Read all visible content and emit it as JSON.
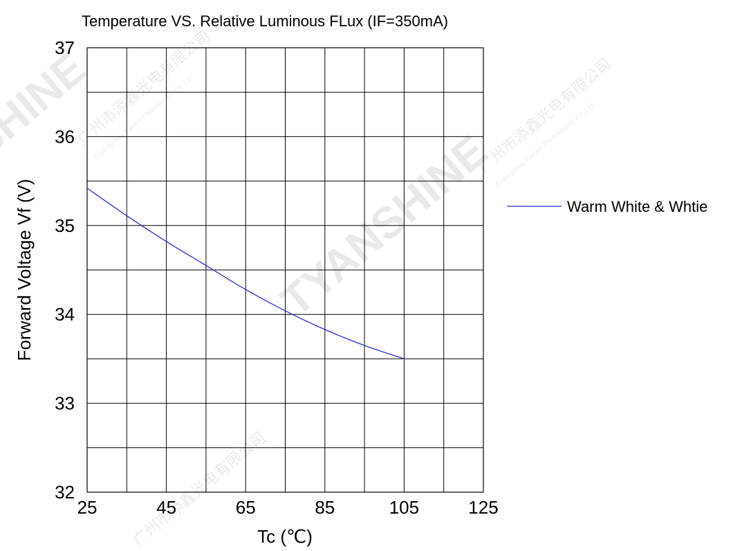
{
  "watermark": {
    "brand": "TYANSHINE",
    "company_cn": "广州市添鑫光电有限公司",
    "company_en": "Guangzhou Tianxin Photoelectric Co.,Ltd"
  },
  "chart_data": {
    "type": "line",
    "title": "Temperature VS. Relative Luminous FLux (IF=350mA)",
    "xlabel": "Tc (℃)",
    "ylabel": "Forward Voltage Vf (V)",
    "xlim": [
      25,
      125
    ],
    "ylim": [
      32,
      37
    ],
    "x_ticks": [
      "25",
      "45",
      "65",
      "85",
      "105",
      "125"
    ],
    "y_ticks": [
      "32",
      "33",
      "34",
      "35",
      "36",
      "37"
    ],
    "x_tick_values": [
      25,
      45,
      65,
      85,
      105,
      125
    ],
    "y_tick_values": [
      32,
      33,
      34,
      35,
      36,
      37
    ],
    "x_grid_step": 10,
    "y_grid_step": 0.5,
    "grid": true,
    "legend_position": "right",
    "series": [
      {
        "name": "Warm White & Whtie",
        "color": "#2a2ae0",
        "x": [
          25,
          35,
          45,
          55,
          65,
          75,
          85,
          95,
          105
        ],
        "y": [
          35.42,
          35.11,
          34.82,
          34.55,
          34.28,
          34.04,
          33.83,
          33.65,
          33.5
        ]
      }
    ]
  }
}
